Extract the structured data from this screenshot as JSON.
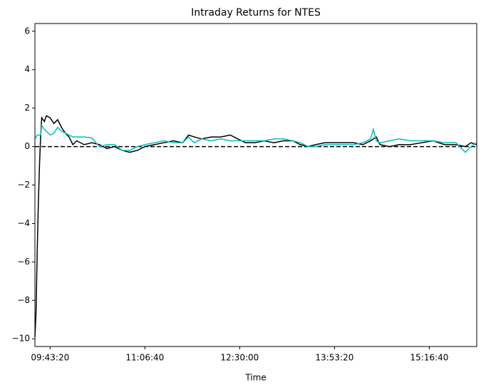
{
  "chart_data": {
    "type": "line",
    "title": "Intraday Returns for NTES",
    "xlabel": "Time",
    "x": [
      34200,
      34260,
      34320,
      34380,
      34440,
      34500,
      34560,
      34700,
      34800,
      35000,
      35200,
      35400,
      35600,
      35800,
      36000,
      36200,
      36400,
      36800,
      37200,
      37600,
      38000,
      38400,
      38800,
      39200,
      39600,
      40000,
      40500,
      41000,
      41500,
      42000,
      42300,
      42600,
      43000,
      43500,
      44000,
      44500,
      44900,
      45300,
      45800,
      46300,
      46800,
      47300,
      47800,
      48200,
      48600,
      49000,
      49500,
      50000,
      50500,
      51000,
      51500,
      51900,
      52050,
      52200,
      52400,
      52900,
      53400,
      54000,
      54600,
      55200,
      55800,
      56400,
      56900,
      57200,
      57480
    ],
    "series": [
      {
        "color": "#000000",
        "values": [
          -9.9,
          -8.6,
          -5.5,
          -3,
          -1,
          0.5,
          1.5,
          1.3,
          1.6,
          1.5,
          1.2,
          1.4,
          1.0,
          0.7,
          0.5,
          0.1,
          0.3,
          0.1,
          0.2,
          0.1,
          -0.1,
          0.0,
          -0.2,
          -0.3,
          -0.2,
          0.0,
          0.1,
          0.2,
          0.3,
          0.2,
          0.6,
          0.5,
          0.4,
          0.5,
          0.5,
          0.6,
          0.4,
          0.2,
          0.2,
          0.3,
          0.2,
          0.3,
          0.3,
          0.1,
          0.0,
          0.1,
          0.2,
          0.2,
          0.2,
          0.2,
          0.1,
          0.3,
          0.4,
          0.5,
          0.1,
          0.0,
          0.1,
          0.1,
          0.2,
          0.3,
          0.1,
          0.1,
          0.0,
          0.2,
          0.1
        ]
      },
      {
        "color": "#00bfbf",
        "values": [
          0.4,
          0.5,
          0.6,
          0.6,
          0.6,
          0.6,
          1.1,
          0.9,
          0.8,
          0.6,
          0.7,
          1.0,
          0.8,
          0.7,
          0.6,
          0.5,
          0.5,
          0.5,
          0.45,
          0.0,
          0.1,
          0.1,
          -0.2,
          -0.2,
          0.0,
          0.1,
          0.2,
          0.3,
          0.2,
          0.2,
          0.5,
          0.2,
          0.4,
          0.3,
          0.4,
          0.3,
          0.3,
          0.3,
          0.3,
          0.3,
          0.4,
          0.4,
          0.3,
          0.2,
          0.0,
          0.0,
          0.1,
          0.1,
          0.1,
          0.1,
          0.2,
          0.4,
          0.9,
          0.3,
          0.2,
          0.3,
          0.4,
          0.3,
          0.3,
          0.3,
          0.2,
          0.2,
          -0.3,
          0.0,
          0.2
        ]
      }
    ],
    "hline": 0,
    "xlim": [
      34200,
      57500
    ],
    "xticks": [
      {
        "value": 35000,
        "label": "09:43:20"
      },
      {
        "value": 40000,
        "label": "11:06:40"
      },
      {
        "value": 45000,
        "label": "12:30:00"
      },
      {
        "value": 50000,
        "label": "13:53:20"
      },
      {
        "value": 55000,
        "label": "15:16:40"
      }
    ],
    "ylim": [
      -10.4,
      6.4
    ],
    "yticks": [
      {
        "value": -10,
        "label": "−10"
      },
      {
        "value": -8,
        "label": "−8"
      },
      {
        "value": -6,
        "label": "−6"
      },
      {
        "value": -4,
        "label": "−4"
      },
      {
        "value": -2,
        "label": "−2"
      },
      0,
      2,
      4,
      6
    ]
  }
}
